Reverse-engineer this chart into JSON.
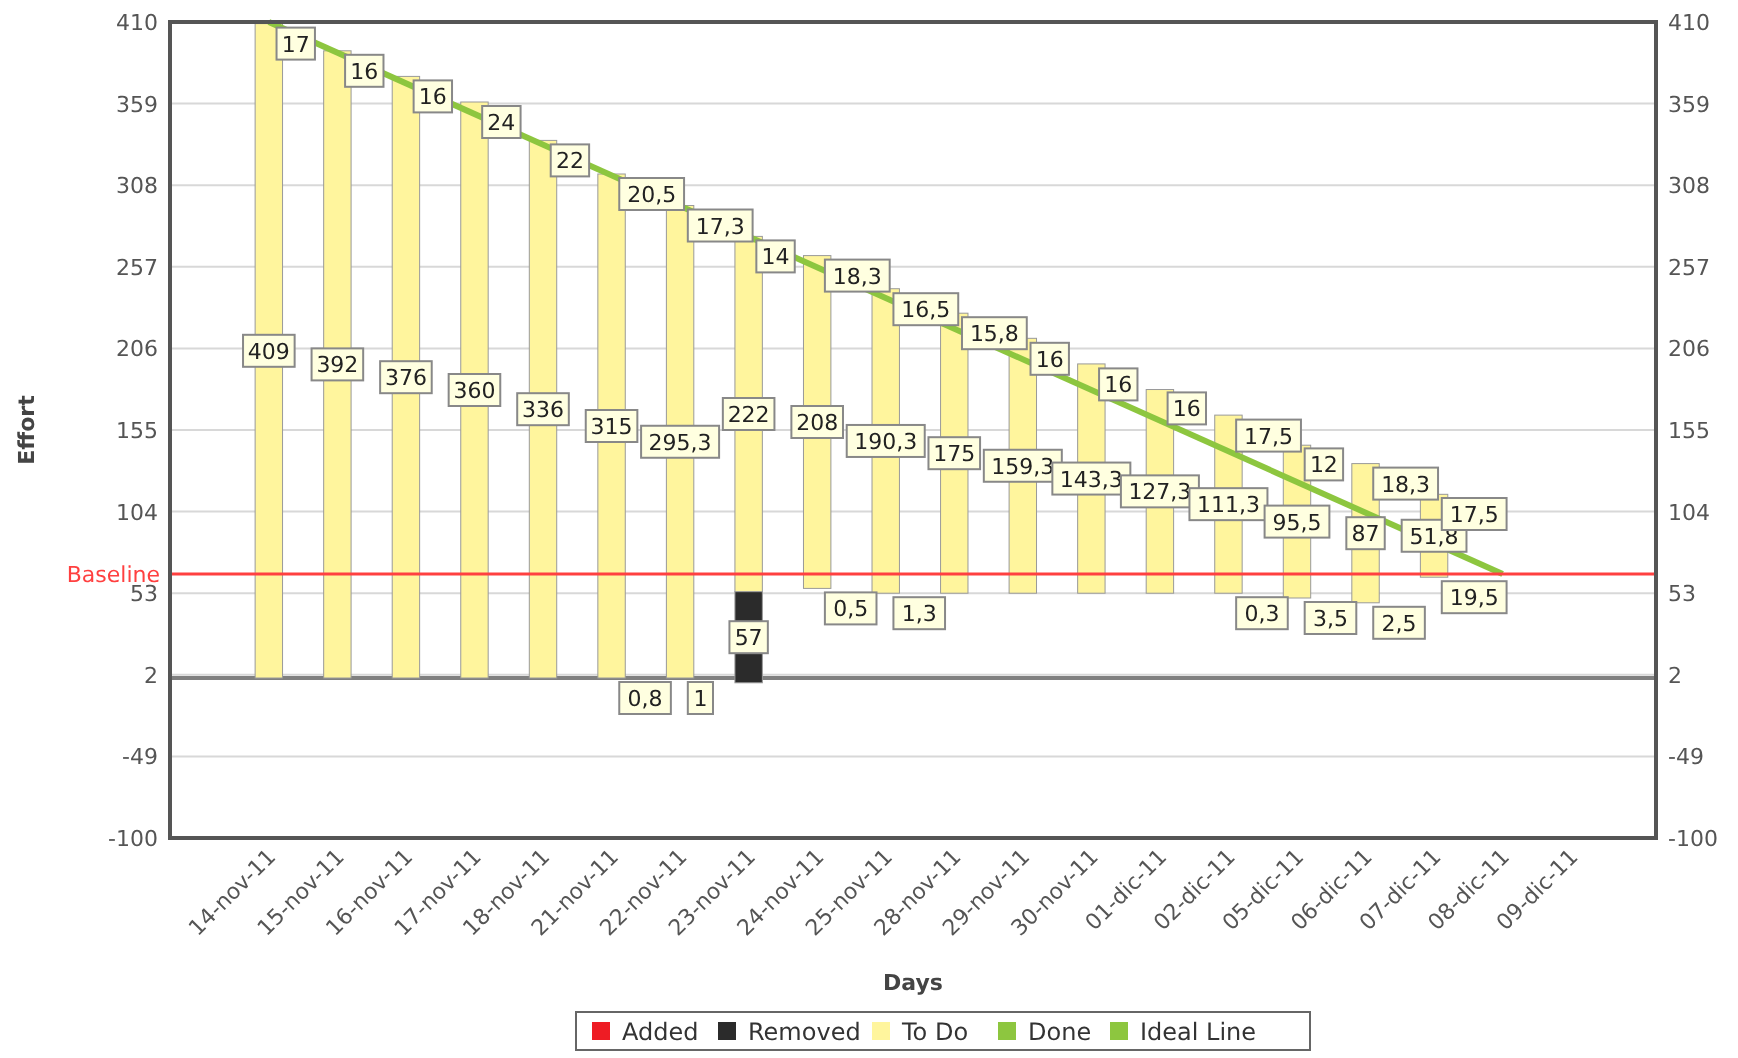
{
  "chart_data": {
    "type": "bar",
    "xlabel": "Days",
    "ylabel": "Effort",
    "categories": [
      "14-nov-11",
      "15-nov-11",
      "16-nov-11",
      "17-nov-11",
      "18-nov-11",
      "21-nov-11",
      "22-nov-11",
      "23-nov-11",
      "24-nov-11",
      "25-nov-11",
      "28-nov-11",
      "29-nov-11",
      "30-nov-11",
      "01-dic-11",
      "02-dic-11",
      "05-dic-11",
      "06-dic-11",
      "07-dic-11",
      "08-dic-11",
      "09-dic-11"
    ],
    "series": [
      {
        "name": "Added",
        "color": "#ee1c24",
        "values": [
          null,
          null,
          null,
          null,
          null,
          null,
          null,
          null,
          null,
          null,
          null,
          null,
          null,
          null,
          null,
          null,
          null,
          null,
          null,
          null
        ]
      },
      {
        "name": "Removed",
        "color": "#2b2b2b",
        "base": [
          null,
          null,
          null,
          null,
          null,
          null,
          null,
          -3,
          null,
          null,
          null,
          null,
          null,
          null,
          null,
          null,
          null,
          null,
          null,
          null
        ],
        "values": [
          null,
          null,
          null,
          null,
          null,
          null,
          null,
          57,
          null,
          null,
          null,
          null,
          null,
          null,
          null,
          null,
          null,
          null,
          null,
          null
        ],
        "value_labels": [
          null,
          null,
          null,
          null,
          null,
          null,
          null,
          "57",
          null,
          null,
          null,
          null,
          null,
          null,
          null,
          null,
          null,
          null,
          null,
          null
        ]
      },
      {
        "name": "To Do",
        "color": "#fff59d",
        "base": [
          0,
          0,
          0,
          0,
          0,
          0,
          0,
          54,
          56,
          53,
          53,
          53,
          53,
          53,
          53,
          50,
          47,
          63,
          null,
          null
        ],
        "values": [
          409,
          392,
          376,
          360,
          336,
          315,
          295.3,
          222,
          208,
          190.3,
          175,
          159.3,
          143.3,
          127.3,
          111.3,
          95.5,
          87,
          51.8,
          null,
          null
        ],
        "value_labels": [
          "409",
          "392",
          "376",
          "360",
          "336",
          "315",
          "295,3",
          "222",
          "208",
          "190,3",
          "175",
          "159,3",
          "143,3",
          "127,3",
          "111,3",
          "95,5",
          "87",
          "51,8",
          null,
          null
        ]
      },
      {
        "name": "Done",
        "color": "#8dc63f",
        "values": [
          null,
          null,
          null,
          null,
          null,
          null,
          null,
          null,
          null,
          null,
          null,
          null,
          null,
          null,
          null,
          null,
          null,
          null,
          null,
          null
        ]
      },
      {
        "name": "Ideal Line",
        "type": "line",
        "color": "#8dc63f",
        "x": [
          "14-nov-11",
          "08-dic-11"
        ],
        "values": [
          410,
          65
        ]
      }
    ],
    "annotations": [
      {
        "text": "17",
        "x": "14-nov-11",
        "y": 409
      },
      {
        "text": "16",
        "x": "15-nov-11",
        "y": 392
      },
      {
        "text": "16",
        "x": "16-nov-11",
        "y": 376
      },
      {
        "text": "24",
        "x": "17-nov-11",
        "y": 360
      },
      {
        "text": "22",
        "x": "18-nov-11",
        "y": 336
      },
      {
        "text": "20,5",
        "x": "21-nov-11",
        "y": 315
      },
      {
        "text": "17,3",
        "x": "22-nov-11",
        "y": 295.3
      },
      {
        "text": "14",
        "x": "23-nov-11",
        "y": 276
      },
      {
        "text": "18,3",
        "x": "24-nov-11",
        "y": 264
      },
      {
        "text": "16,5",
        "x": "25-nov-11",
        "y": 243
      },
      {
        "text": "15,8",
        "x": "28-nov-11",
        "y": 228
      },
      {
        "text": "16",
        "x": "29-nov-11",
        "y": 212
      },
      {
        "text": "16",
        "x": "30-nov-11",
        "y": 196
      },
      {
        "text": "16",
        "x": "01-dic-11",
        "y": 181
      },
      {
        "text": "17,5",
        "x": "02-dic-11",
        "y": 164
      },
      {
        "text": "12",
        "x": "05-dic-11",
        "y": 146
      },
      {
        "text": "18,3",
        "x": "06-dic-11",
        "y": 134
      },
      {
        "text": "17,5",
        "x": "07-dic-11",
        "y": 115
      },
      {
        "text": "0,8",
        "x": "21-nov-11",
        "y": 0
      },
      {
        "text": "1",
        "x": "22-nov-11",
        "y": 0
      },
      {
        "text": "0,5",
        "x": "24-nov-11",
        "y": 56
      },
      {
        "text": "1,3",
        "x": "25-nov-11",
        "y": 53
      },
      {
        "text": "0,3",
        "x": "02-dic-11",
        "y": 53
      },
      {
        "text": "3,5",
        "x": "05-dic-11",
        "y": 50
      },
      {
        "text": "2,5",
        "x": "06-dic-11",
        "y": 47
      },
      {
        "text": "19,5",
        "x": "07-dic-11",
        "y": 63
      }
    ],
    "ref_lines": [
      {
        "axis": "y",
        "value": 65,
        "label": "Baseline",
        "color": "#ff4040"
      }
    ],
    "ylim": [
      -100,
      410
    ],
    "yticks": [
      -100,
      -49,
      2,
      53,
      104,
      155,
      206,
      257,
      308,
      359,
      410
    ],
    "y2lim": [
      -100,
      410
    ],
    "y2ticks": [
      -100,
      -49,
      2,
      53,
      104,
      155,
      206,
      257,
      308,
      359,
      410
    ],
    "grid": "y",
    "legend": "bottom"
  }
}
